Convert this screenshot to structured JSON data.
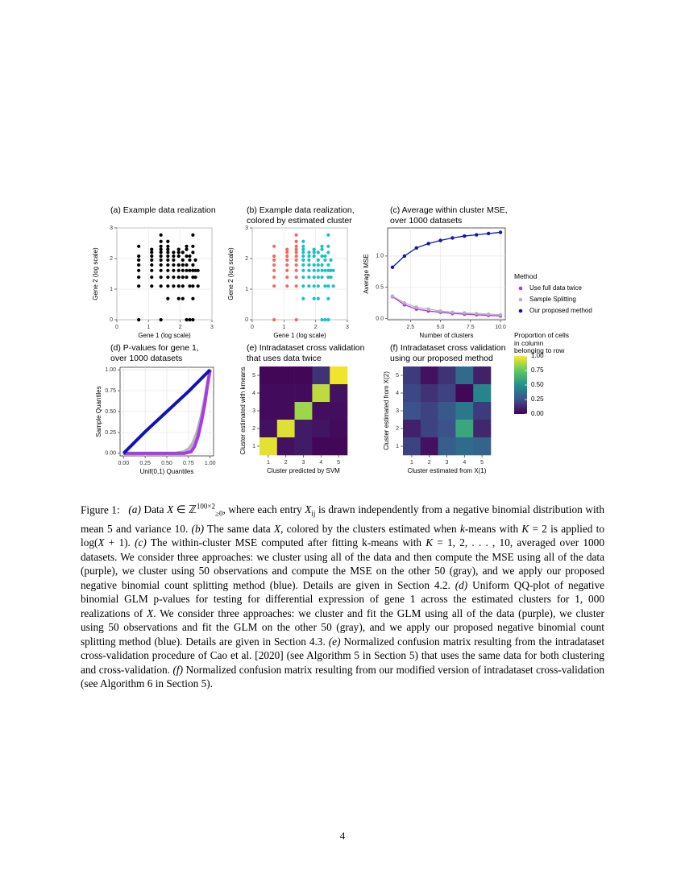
{
  "figure": {
    "panels": {
      "a": {
        "title": "(a) Example data realization"
      },
      "b": {
        "title": "(b) Example data realization,\ncolored by estimated cluster"
      },
      "c": {
        "title": "(c) Average within cluster MSE,\nover 1000 datasets"
      },
      "d": {
        "title": "(d) P-values for gene 1,\nover 1000 datasets"
      },
      "e": {
        "title": "(e) Intradataset cross validation\nthat uses data twice"
      },
      "f": {
        "title": "(f) Intradataset cross validation\nusing our proposed method"
      }
    },
    "method_legend": {
      "title": "Method",
      "items": [
        {
          "label": "Use full data twice",
          "color": "#a63be8"
        },
        {
          "label": "Sample Splitting",
          "color": "#b5b5b5"
        },
        {
          "label": "Our proposed method",
          "color": "#1014b8"
        }
      ]
    },
    "colorbar_legend": {
      "title": "Proportion of cells\nin column\nbelonging to row",
      "ticks": [
        "1.00",
        "0.75",
        "0.50",
        "0.25",
        "0.00"
      ]
    }
  },
  "chart_data": [
    {
      "id": "a",
      "type": "scatter",
      "xlabel": "Gene 1 (log scale)",
      "ylabel": "Gene 2 (log scale)",
      "xlim": [
        0,
        3
      ],
      "ylim": [
        0,
        3
      ],
      "xticks": [
        "0",
        "1",
        "2",
        "3"
      ],
      "yticks": [
        "0",
        "1",
        "2",
        "3"
      ],
      "color": "#000000",
      "points": [
        [
          0.69,
          0
        ],
        [
          1.39,
          0
        ],
        [
          2.2,
          0
        ],
        [
          2.3,
          0
        ],
        [
          2.4,
          0
        ],
        [
          0.69,
          1.1
        ],
        [
          1.1,
          1.1
        ],
        [
          1.39,
          1.1
        ],
        [
          1.61,
          1.1
        ],
        [
          1.79,
          1.1
        ],
        [
          1.95,
          1.1
        ],
        [
          2.08,
          1.1
        ],
        [
          2.3,
          1.1
        ],
        [
          2.4,
          1.1
        ],
        [
          2.56,
          1.1
        ],
        [
          0.69,
          1.39
        ],
        [
          1.1,
          1.39
        ],
        [
          1.39,
          1.39
        ],
        [
          1.61,
          1.39
        ],
        [
          1.79,
          1.39
        ],
        [
          1.95,
          1.39
        ],
        [
          2.08,
          1.39
        ],
        [
          2.2,
          1.39
        ],
        [
          2.4,
          1.39
        ],
        [
          2.48,
          1.39
        ],
        [
          0.69,
          1.61
        ],
        [
          1.1,
          1.61
        ],
        [
          1.39,
          1.61
        ],
        [
          1.61,
          1.61
        ],
        [
          1.79,
          1.61
        ],
        [
          1.95,
          1.61
        ],
        [
          2.08,
          1.61
        ],
        [
          2.2,
          1.61
        ],
        [
          2.3,
          1.61
        ],
        [
          2.4,
          1.61
        ],
        [
          2.48,
          1.61
        ],
        [
          2.56,
          1.61
        ],
        [
          0.69,
          1.79
        ],
        [
          1.1,
          1.79
        ],
        [
          1.39,
          1.79
        ],
        [
          1.61,
          1.79
        ],
        [
          1.79,
          1.79
        ],
        [
          1.95,
          1.79
        ],
        [
          2.08,
          1.79
        ],
        [
          2.2,
          1.79
        ],
        [
          2.4,
          1.79
        ],
        [
          0.69,
          1.95
        ],
        [
          1.1,
          1.95
        ],
        [
          1.39,
          1.95
        ],
        [
          1.61,
          1.95
        ],
        [
          1.79,
          1.95
        ],
        [
          2.08,
          1.95
        ],
        [
          2.3,
          1.95
        ],
        [
          2.48,
          1.95
        ],
        [
          0.69,
          2.08
        ],
        [
          1.1,
          2.08
        ],
        [
          1.39,
          2.08
        ],
        [
          1.61,
          2.08
        ],
        [
          1.79,
          2.08
        ],
        [
          1.95,
          2.08
        ],
        [
          2.2,
          2.08
        ],
        [
          2.3,
          2.08
        ],
        [
          1.1,
          2.2
        ],
        [
          1.39,
          2.2
        ],
        [
          1.61,
          2.2
        ],
        [
          1.79,
          2.2
        ],
        [
          1.95,
          2.2
        ],
        [
          2.08,
          2.2
        ],
        [
          2.4,
          2.2
        ],
        [
          1.1,
          2.3
        ],
        [
          1.39,
          2.3
        ],
        [
          1.61,
          2.3
        ],
        [
          1.95,
          2.3
        ],
        [
          2.2,
          2.3
        ],
        [
          0.69,
          2.4
        ],
        [
          1.39,
          2.4
        ],
        [
          1.61,
          2.4
        ],
        [
          2.2,
          2.4
        ],
        [
          2.4,
          2.4
        ],
        [
          1.39,
          2.56
        ],
        [
          1.61,
          2.56
        ],
        [
          1.39,
          2.77
        ],
        [
          2.4,
          2.77
        ],
        [
          1.95,
          0.69
        ],
        [
          2.4,
          0.69
        ],
        [
          1.61,
          0.69
        ],
        [
          2.08,
          0.69
        ]
      ]
    },
    {
      "id": "b",
      "type": "scatter",
      "xlabel": "Gene 1 (log scale)",
      "ylabel": "Gene 2 (log scale)",
      "xlim": [
        0,
        3
      ],
      "ylim": [
        0,
        3
      ],
      "xticks": [
        "0",
        "1",
        "2",
        "3"
      ],
      "yticks": [
        "0",
        "1",
        "2",
        "3"
      ],
      "series": [
        {
          "color": "#f06a60",
          "points": [
            [
              0.69,
              0
            ],
            [
              0.69,
              1.1
            ],
            [
              1.1,
              1.1
            ],
            [
              1.39,
              1.1
            ],
            [
              0.69,
              1.39
            ],
            [
              1.1,
              1.39
            ],
            [
              1.39,
              1.39
            ],
            [
              0.69,
              1.61
            ],
            [
              1.1,
              1.61
            ],
            [
              1.39,
              1.61
            ],
            [
              0.69,
              1.79
            ],
            [
              1.1,
              1.79
            ],
            [
              1.39,
              1.79
            ],
            [
              0.69,
              1.95
            ],
            [
              1.1,
              1.95
            ],
            [
              1.39,
              1.95
            ],
            [
              0.69,
              2.08
            ],
            [
              1.1,
              2.08
            ],
            [
              1.39,
              2.08
            ],
            [
              1.1,
              2.2
            ],
            [
              1.39,
              2.2
            ],
            [
              1.1,
              2.3
            ],
            [
              1.39,
              2.3
            ],
            [
              0.69,
              2.4
            ],
            [
              1.39,
              2.4
            ],
            [
              1.39,
              2.56
            ],
            [
              1.39,
              2.77
            ],
            [
              1.39,
              0
            ]
          ]
        },
        {
          "color": "#1bbfc4",
          "points": [
            [
              2.2,
              0
            ],
            [
              2.3,
              0
            ],
            [
              2.4,
              0
            ],
            [
              1.61,
              1.1
            ],
            [
              1.79,
              1.1
            ],
            [
              1.95,
              1.1
            ],
            [
              2.08,
              1.1
            ],
            [
              2.3,
              1.1
            ],
            [
              2.4,
              1.1
            ],
            [
              2.56,
              1.1
            ],
            [
              1.61,
              1.39
            ],
            [
              1.79,
              1.39
            ],
            [
              1.95,
              1.39
            ],
            [
              2.08,
              1.39
            ],
            [
              2.2,
              1.39
            ],
            [
              2.4,
              1.39
            ],
            [
              2.48,
              1.39
            ],
            [
              1.61,
              1.61
            ],
            [
              1.79,
              1.61
            ],
            [
              1.95,
              1.61
            ],
            [
              2.08,
              1.61
            ],
            [
              2.2,
              1.61
            ],
            [
              2.3,
              1.61
            ],
            [
              2.4,
              1.61
            ],
            [
              2.48,
              1.61
            ],
            [
              2.56,
              1.61
            ],
            [
              1.61,
              1.79
            ],
            [
              1.79,
              1.79
            ],
            [
              1.95,
              1.79
            ],
            [
              2.08,
              1.79
            ],
            [
              2.2,
              1.79
            ],
            [
              2.4,
              1.79
            ],
            [
              1.61,
              1.95
            ],
            [
              1.79,
              1.95
            ],
            [
              2.08,
              1.95
            ],
            [
              2.3,
              1.95
            ],
            [
              2.48,
              1.95
            ],
            [
              1.61,
              2.08
            ],
            [
              1.79,
              2.08
            ],
            [
              1.95,
              2.08
            ],
            [
              2.2,
              2.08
            ],
            [
              2.3,
              2.08
            ],
            [
              1.61,
              2.2
            ],
            [
              1.79,
              2.2
            ],
            [
              1.95,
              2.2
            ],
            [
              2.08,
              2.2
            ],
            [
              2.4,
              2.2
            ],
            [
              1.61,
              2.3
            ],
            [
              1.95,
              2.3
            ],
            [
              2.2,
              2.3
            ],
            [
              1.61,
              2.4
            ],
            [
              2.2,
              2.4
            ],
            [
              2.4,
              2.4
            ],
            [
              1.61,
              2.56
            ],
            [
              2.4,
              2.77
            ],
            [
              1.95,
              0.69
            ],
            [
              2.4,
              0.69
            ],
            [
              1.61,
              0.69
            ],
            [
              2.08,
              0.69
            ]
          ]
        }
      ]
    },
    {
      "id": "c",
      "type": "line",
      "xlabel": "Number of clusters",
      "ylabel": "Average MSE",
      "xlim": [
        1,
        10
      ],
      "ylim": [
        0,
        1.4
      ],
      "xticks": [
        2.5,
        5.0,
        7.5,
        10.0
      ],
      "yticks": [
        0.0,
        0.5,
        1.0
      ],
      "x": [
        1,
        2,
        3,
        4,
        5,
        6,
        7,
        8,
        9,
        10
      ],
      "series": [
        {
          "name": "Our proposed method",
          "color": "#1014b8",
          "values": [
            0.82,
            1.0,
            1.13,
            1.2,
            1.25,
            1.29,
            1.32,
            1.34,
            1.36,
            1.38
          ]
        },
        {
          "name": "Sample Splitting",
          "color": "#b5b5b5",
          "values": [
            0.36,
            0.25,
            0.18,
            0.15,
            0.12,
            0.1,
            0.09,
            0.08,
            0.07,
            0.06
          ]
        },
        {
          "name": "Use full data twice",
          "color": "#a63be8",
          "values": [
            0.35,
            0.22,
            0.15,
            0.12,
            0.1,
            0.08,
            0.07,
            0.06,
            0.05,
            0.04
          ]
        }
      ]
    },
    {
      "id": "d",
      "type": "line",
      "xlabel": "Unif(0,1) Quantiles",
      "ylabel": "Sample Quantiles",
      "xlim": [
        0,
        1
      ],
      "ylim": [
        0,
        1
      ],
      "xticks": [
        "0.00",
        "0.25",
        "0.50",
        "0.75",
        "1.00"
      ],
      "yticks": [
        "0.00",
        "0.25",
        "0.50",
        "0.75",
        "1.00"
      ],
      "series": [
        {
          "name": "Sample Splitting",
          "color": "#b5b5b5",
          "x": [
            0,
            0.6,
            0.7,
            0.76,
            0.8,
            0.85,
            0.9,
            0.95,
            1.0
          ],
          "values": [
            0,
            0,
            0.02,
            0.06,
            0.12,
            0.25,
            0.45,
            0.72,
            1.0
          ]
        },
        {
          "name": "Use full data twice",
          "color": "#a63be8",
          "x": [
            0,
            0.7,
            0.78,
            0.82,
            0.86,
            0.9,
            0.94,
            0.97,
            1.0
          ],
          "values": [
            0,
            0,
            0.02,
            0.08,
            0.2,
            0.38,
            0.6,
            0.82,
            1.0
          ]
        },
        {
          "name": "Our proposed method",
          "color": "#1014b8",
          "x": [
            0,
            0.25,
            0.5,
            0.75,
            1.0
          ],
          "values": [
            0,
            0.26,
            0.5,
            0.74,
            1.0
          ]
        }
      ]
    },
    {
      "id": "e",
      "type": "heatmap",
      "xlabel": "Cluster predicted by SVM",
      "ylabel": "Cluster estimated with kmeans",
      "xticks": [
        "1",
        "2",
        "3",
        "4",
        "5"
      ],
      "yticks": [
        "1",
        "2",
        "3",
        "4",
        "5"
      ],
      "rows_top_to_bottom": [
        [
          0.02,
          0.02,
          0.02,
          0.15,
          0.98
        ],
        [
          0.03,
          0.03,
          0.03,
          0.9,
          0.05
        ],
        [
          0.03,
          0.03,
          0.85,
          0.04,
          0.04
        ],
        [
          0.05,
          0.95,
          0.08,
          0.06,
          0.03
        ],
        [
          0.96,
          0.05,
          0.08,
          0.02,
          0.02
        ]
      ]
    },
    {
      "id": "f",
      "type": "heatmap",
      "xlabel": "Cluster estimated from X(1)",
      "ylabel": "Cluster estimated from X(2)",
      "xticks": [
        "1",
        "2",
        "3",
        "4",
        "5"
      ],
      "yticks": [
        "1",
        "2",
        "3",
        "4",
        "5"
      ],
      "rows_top_to_bottom": [
        [
          0.18,
          0.05,
          0.15,
          0.35,
          0.1
        ],
        [
          0.22,
          0.15,
          0.2,
          0.02,
          0.45
        ],
        [
          0.25,
          0.2,
          0.28,
          0.4,
          0.18
        ],
        [
          0.1,
          0.2,
          0.25,
          0.6,
          0.12
        ],
        [
          0.2,
          0.05,
          0.3,
          0.35,
          0.32
        ]
      ]
    }
  ],
  "caption": {
    "label": "Figure 1:",
    "parts": [
      {
        "i": "(a)"
      },
      {
        "t": " Data "
      },
      {
        "i": "X"
      },
      {
        "t": " ∈ ℤ"
      },
      {
        "sup": "100×2"
      },
      {
        "sub": "≥0"
      },
      {
        "t": ", where each entry "
      },
      {
        "i": "X"
      },
      {
        "sub": "ij"
      },
      {
        "t": " is drawn independently from a negative binomial distribution with mean 5 and variance 10. "
      },
      {
        "i": "(b)"
      },
      {
        "t": " The same data "
      },
      {
        "i": "X"
      },
      {
        "t": ", colored by the clusters estimated when "
      },
      {
        "i": "k"
      },
      {
        "t": "-means with "
      },
      {
        "i": "K"
      },
      {
        "t": " = 2 is applied to log("
      },
      {
        "i": "X"
      },
      {
        "t": " + 1). "
      },
      {
        "i": "(c)"
      },
      {
        "t": " The within-cluster MSE computed after fitting k-means with "
      },
      {
        "i": "K"
      },
      {
        "t": " = 1, 2, . . . , 10, averaged over 1000 datasets. We consider three approaches: we cluster using all of the data and then compute the MSE using all of the data (purple), we cluster using 50 observations and compute the MSE on the other 50 (gray), and we apply our proposed negative binomial count splitting method (blue). Details are given in Section 4.2. "
      },
      {
        "i": "(d)"
      },
      {
        "t": " Uniform QQ-plot of negative binomial GLM p-values for testing for differential expression of gene 1 across the estimated clusters for 1, 000 realizations of "
      },
      {
        "i": "X"
      },
      {
        "t": ". We consider three approaches: we cluster and fit the GLM using all of the data (purple), we cluster using 50 observations and fit the GLM on the other 50 (gray), and we apply our proposed negative binomial count splitting method (blue). Details are given in Section 4.3. "
      },
      {
        "i": "(e)"
      },
      {
        "t": " Normalized confusion matrix resulting from the intradataset cross-validation procedure of Cao et al. [2020] (see Algorithm 5 in Section 5) that uses the same data for both clustering and cross-validation. "
      },
      {
        "i": "(f)"
      },
      {
        "t": " Normalized confusion matrix resulting from our modified version of intradataset cross-validation (see Algorithm 6 in Section 5)."
      }
    ]
  },
  "page_number": "4"
}
